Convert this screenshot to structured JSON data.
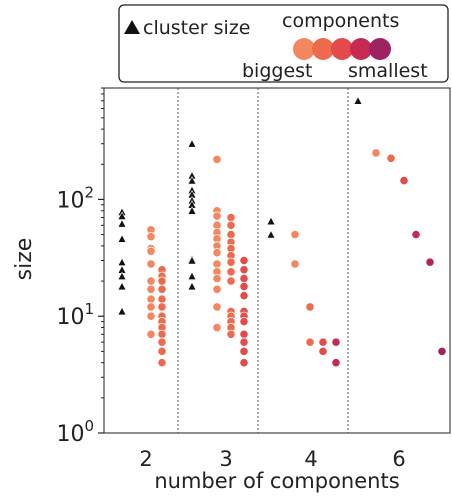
{
  "chart_data": {
    "type": "scatter",
    "xlabel": "number of components",
    "ylabel": "size",
    "yscale": "log",
    "ylim": [
      1,
      900
    ],
    "groups": [
      "2",
      "3",
      "4",
      "6"
    ],
    "y_ticks": [
      {
        "value": 1,
        "base": "10",
        "exp": "0"
      },
      {
        "value": 10,
        "base": "10",
        "exp": "1"
      },
      {
        "value": 100,
        "base": "10",
        "exp": "2"
      }
    ],
    "legend": {
      "placement": "top",
      "cluster_label": "cluster size",
      "components_title": "components",
      "biggest_label": "biggest",
      "smallest_label": "smallest",
      "swatch_colors": [
        "#f4875f",
        "#ee6a4e",
        "#e44a49",
        "#c62a53",
        "#9e2362"
      ]
    },
    "grid": false,
    "separators": true,
    "colors": [
      "#f4875f",
      "#ee6a4e",
      "#e44a49",
      "#c62a53",
      "#9e2362"
    ],
    "series": [
      {
        "group": "2",
        "kind": "cluster size",
        "values": [
          78,
          72,
          62,
          46,
          29,
          25,
          22,
          18,
          11
        ]
      },
      {
        "group": "2",
        "component": 1,
        "values": [
          55,
          48,
          38,
          36,
          28,
          20,
          17,
          14,
          12,
          10,
          7
        ]
      },
      {
        "group": "2",
        "component": 2,
        "values": [
          25,
          22,
          20,
          17,
          14,
          12,
          10,
          9,
          8,
          7,
          6,
          5,
          4
        ]
      },
      {
        "group": "3",
        "kind": "cluster size",
        "values": [
          300,
          160,
          145,
          120,
          110,
          98,
          90,
          80,
          31,
          30,
          22,
          18
        ]
      },
      {
        "group": "3",
        "component": 1,
        "values": [
          220,
          80,
          72,
          60,
          52,
          46,
          40,
          35,
          28,
          24,
          21,
          17,
          12,
          8
        ]
      },
      {
        "group": "3",
        "component": 2,
        "values": [
          70,
          60,
          50,
          43,
          38,
          33,
          29,
          24,
          20,
          11,
          10,
          9,
          8,
          7
        ]
      },
      {
        "group": "3",
        "component": 3,
        "values": [
          30,
          25,
          21,
          18,
          15,
          11,
          10,
          9,
          7,
          6,
          5,
          4
        ]
      },
      {
        "group": "4",
        "kind": "cluster size",
        "values": [
          65,
          50
        ]
      },
      {
        "group": "4",
        "component": 1,
        "values": [
          50,
          28
        ]
      },
      {
        "group": "4",
        "component": 2,
        "values": [
          12,
          6
        ]
      },
      {
        "group": "4",
        "component": 3,
        "values": [
          6,
          5
        ]
      },
      {
        "group": "4",
        "component": 4,
        "values": [
          6,
          4
        ]
      },
      {
        "group": "6",
        "kind": "cluster size",
        "values": [
          700
        ]
      },
      {
        "group": "6",
        "component": 1,
        "values": [
          250
        ]
      },
      {
        "group": "6",
        "component": 2,
        "values": [
          225
        ]
      },
      {
        "group": "6",
        "component": 3,
        "values": [
          145
        ]
      },
      {
        "group": "6",
        "component": 4,
        "values": [
          50
        ]
      },
      {
        "group": "6",
        "component": 5,
        "values": [
          29
        ]
      },
      {
        "group": "6",
        "component": 6,
        "values": [
          5
        ]
      }
    ]
  }
}
